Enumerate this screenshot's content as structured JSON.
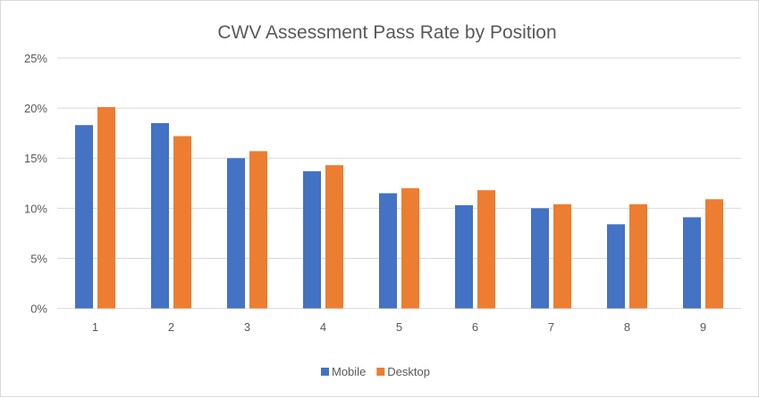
{
  "chart_data": {
    "type": "bar",
    "title": "CWV Assessment Pass Rate by Position",
    "xlabel": "",
    "ylabel": "",
    "categories": [
      "1",
      "2",
      "3",
      "4",
      "5",
      "6",
      "7",
      "8",
      "9"
    ],
    "series": [
      {
        "name": "Mobile",
        "color": "#4472C4",
        "values": [
          18.3,
          18.5,
          15.0,
          13.7,
          11.5,
          10.3,
          10.0,
          8.4,
          9.1
        ]
      },
      {
        "name": "Desktop",
        "color": "#ED7D31",
        "values": [
          20.1,
          17.2,
          15.7,
          14.3,
          12.0,
          11.8,
          10.4,
          10.4,
          10.9
        ]
      }
    ],
    "ylim": [
      0,
      25
    ],
    "yticks": [
      "0%",
      "5%",
      "10%",
      "15%",
      "20%",
      "25%"
    ],
    "grid": true,
    "legend": "bottom"
  }
}
